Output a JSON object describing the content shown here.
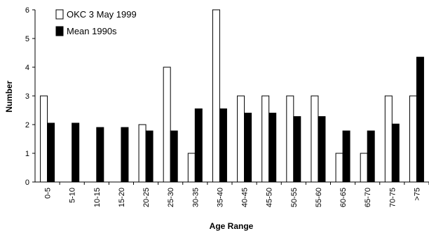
{
  "chart_data": {
    "type": "bar",
    "categories": [
      "0-5",
      "5-10",
      "10-15",
      "15-20",
      "20-25",
      "25-30",
      "30-35",
      "35-40",
      "40-45",
      "45-50",
      "50-55",
      "55-60",
      "60-65",
      "65-70",
      "70-75",
      ">75"
    ],
    "series": [
      {
        "name": "OKC 3 May 1999",
        "values": [
          3,
          0,
          0,
          0,
          2,
          4,
          1,
          6,
          3,
          3,
          3,
          3,
          1,
          1,
          3,
          3
        ],
        "color": "#ffffff"
      },
      {
        "name": "Mean 1990s",
        "values": [
          2.05,
          2.05,
          1.9,
          1.9,
          1.78,
          1.78,
          2.55,
          2.55,
          2.4,
          2.4,
          2.28,
          2.28,
          1.78,
          1.78,
          2.02,
          4.35
        ],
        "color": "#000000"
      }
    ],
    "xlabel": "Age Range",
    "ylabel": "Number",
    "ylim": [
      0,
      6
    ],
    "yticks": [
      "0",
      "1",
      "2",
      "3",
      "4",
      "5",
      "6"
    ],
    "grid": false,
    "legend_position": "top-left"
  }
}
